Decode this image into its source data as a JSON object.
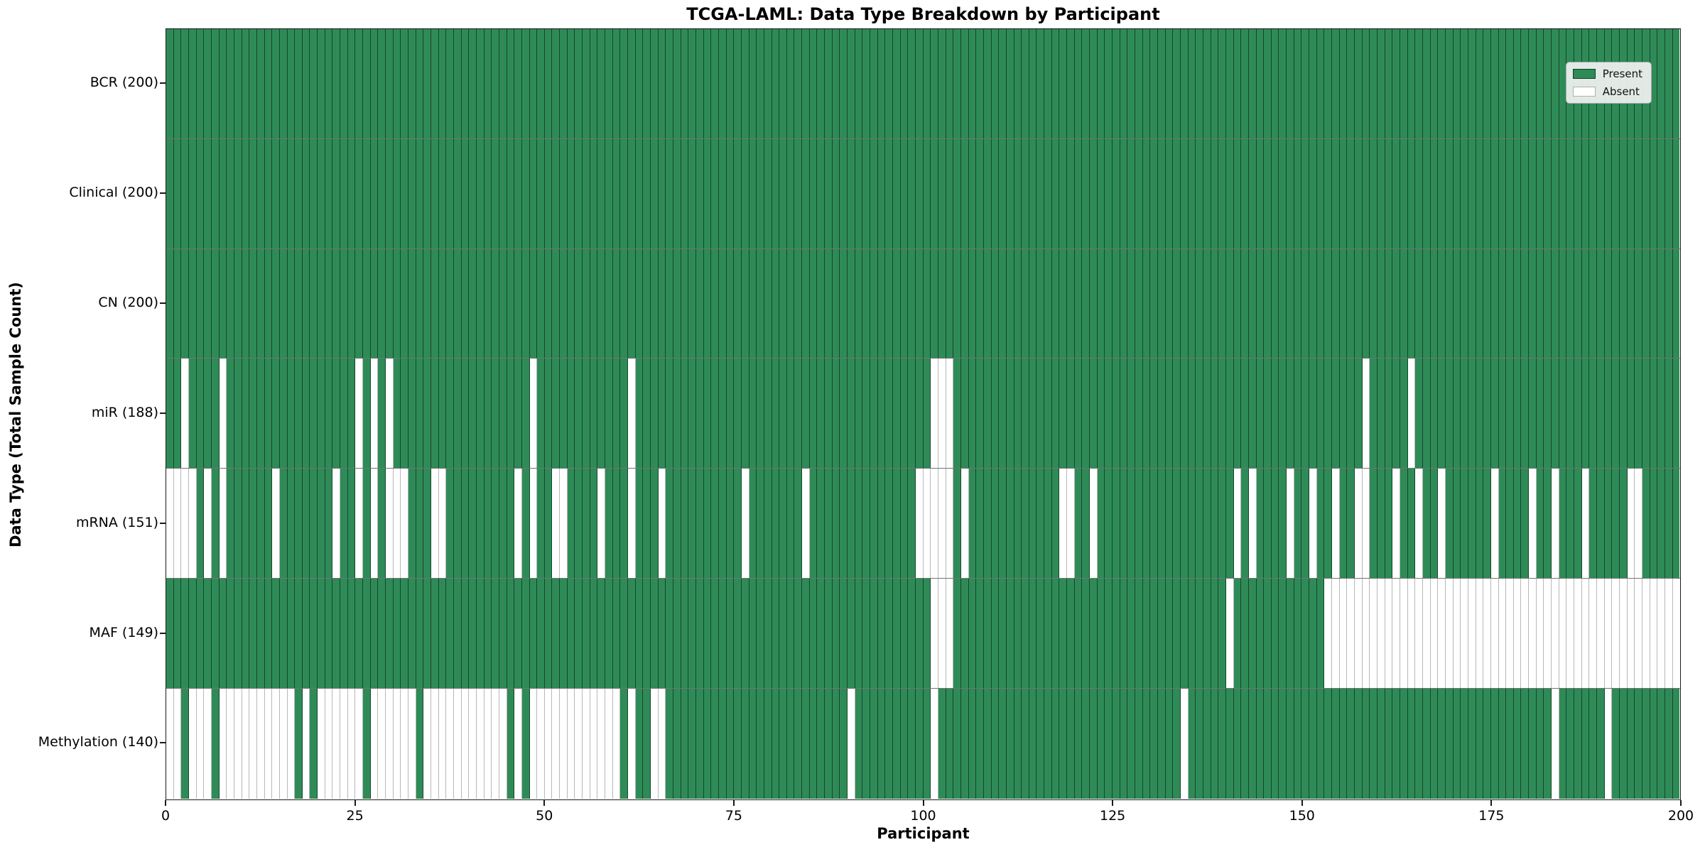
{
  "title": "TCGA-LAML: Data Type Breakdown by Participant",
  "axes": {
    "x_label": "Participant",
    "y_label": "Data Type (Total Sample Count)",
    "x_ticks": [
      0,
      25,
      50,
      75,
      100,
      125,
      150,
      175,
      200
    ],
    "x_range": [
      0,
      200
    ]
  },
  "legend": {
    "present_label": "Present",
    "absent_label": "Absent"
  },
  "colors": {
    "present": "#2e8b57",
    "absent": "#ffffff",
    "present_edge": "rgba(0,0,0,0.5)",
    "absent_edge": "#b8b8b8"
  },
  "chart_data": {
    "type": "heatmap",
    "title": "TCGA-LAML: Data Type Breakdown by Participant",
    "xlabel": "Participant",
    "ylabel": "Data Type (Total Sample Count)",
    "n_participants": 200,
    "cell_values": {
      "present": 1,
      "absent": 0
    },
    "rows": [
      {
        "name": "BCR",
        "label": "BCR (200)",
        "present_count": 200,
        "absent_indices": []
      },
      {
        "name": "Clinical",
        "label": "Clinical (200)",
        "present_count": 200,
        "absent_indices": []
      },
      {
        "name": "CN",
        "label": "CN (200)",
        "present_count": 200,
        "absent_indices": []
      },
      {
        "name": "miR",
        "label": "miR (188)",
        "present_count": 188,
        "absent_indices": [
          2,
          7,
          25,
          27,
          29,
          48,
          61,
          101,
          102,
          103,
          158,
          164
        ]
      },
      {
        "name": "mRNA",
        "label": "mRNA (151)",
        "present_count": 151,
        "absent_indices": [
          0,
          1,
          2,
          3,
          5,
          7,
          14,
          22,
          25,
          27,
          29,
          30,
          31,
          35,
          36,
          46,
          48,
          51,
          52,
          57,
          61,
          65,
          76,
          84,
          99,
          100,
          101,
          102,
          103,
          105,
          118,
          119,
          122,
          141,
          143,
          148,
          151,
          154,
          157,
          158,
          162,
          165,
          168,
          175,
          180,
          183,
          187,
          193,
          194
        ]
      },
      {
        "name": "MAF",
        "label": "MAF (149)",
        "present_count": 149,
        "absent_indices": [
          101,
          102,
          103,
          140,
          153,
          154,
          155,
          156,
          157,
          158,
          159,
          160,
          161,
          162,
          163,
          164,
          165,
          166,
          167,
          168,
          169,
          170,
          171,
          172,
          173,
          174,
          175,
          176,
          177,
          178,
          179,
          180,
          181,
          182,
          183,
          184,
          185,
          186,
          187,
          188,
          189,
          190,
          191,
          192,
          193,
          194,
          195,
          196,
          197,
          198,
          199
        ]
      },
      {
        "name": "Methylation",
        "label": "Methylation (140)",
        "present_count": 140,
        "absent_indices": [
          0,
          1,
          3,
          4,
          5,
          7,
          8,
          9,
          10,
          11,
          12,
          13,
          14,
          15,
          16,
          18,
          20,
          21,
          22,
          23,
          24,
          25,
          27,
          28,
          29,
          30,
          31,
          32,
          34,
          35,
          36,
          37,
          38,
          39,
          40,
          41,
          42,
          43,
          44,
          46,
          48,
          49,
          50,
          51,
          52,
          53,
          54,
          55,
          56,
          57,
          58,
          59,
          61,
          64,
          65,
          90,
          101,
          134,
          183,
          190
        ]
      }
    ]
  }
}
